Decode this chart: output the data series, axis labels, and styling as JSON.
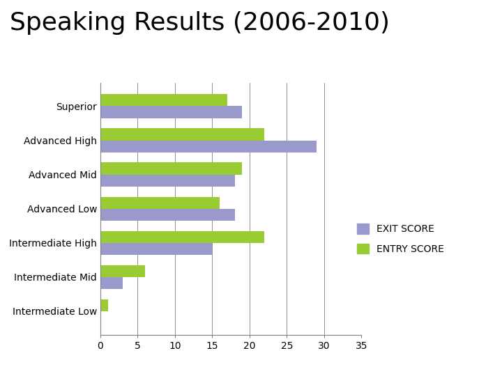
{
  "title": "Speaking Results (2006-2010)",
  "categories": [
    "Superior",
    "Advanced High",
    "Advanced Mid",
    "Advanced Low",
    "Intermediate High",
    "Intermediate Mid",
    "Intermediate Low"
  ],
  "exit_scores": [
    19,
    29,
    18,
    18,
    15,
    3,
    0
  ],
  "entry_scores": [
    17,
    22,
    19,
    16,
    22,
    6,
    1
  ],
  "exit_color": "#9999cc",
  "entry_color": "#99cc33",
  "xlim": [
    0,
    35
  ],
  "xticks": [
    0,
    5,
    10,
    15,
    20,
    25,
    30,
    35
  ],
  "title_fontsize": 26,
  "label_fontsize": 10,
  "tick_fontsize": 10,
  "legend_exit": "EXIT SCORE",
  "legend_entry": "ENTRY SCORE",
  "background_color": "#ffffff"
}
